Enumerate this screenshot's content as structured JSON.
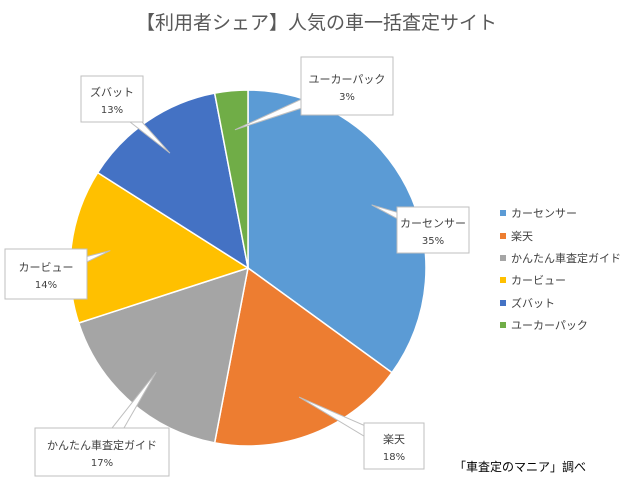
{
  "chart_data": {
    "type": "pie",
    "title": "【利用者シェア】人気の車一括査定サイト",
    "categories": [
      "カーセンサー",
      "楽天",
      "かんたん車査定ガイド",
      "カービュー",
      "ズバット",
      "ユーカーパック"
    ],
    "values": [
      35,
      18,
      17,
      14,
      13,
      3
    ],
    "data_labels": [
      "35%",
      "18%",
      "17%",
      "14%",
      "13%",
      "3%"
    ],
    "colors": [
      "#5B9BD5",
      "#ED7D31",
      "#A5A5A5",
      "#FFC000",
      "#4472C4",
      "#70AD47"
    ],
    "start_angle": 0,
    "direction": "clockwise",
    "legend_position": "right",
    "callout_labels": true
  },
  "source_note": "「車査定のマニア」調べ"
}
